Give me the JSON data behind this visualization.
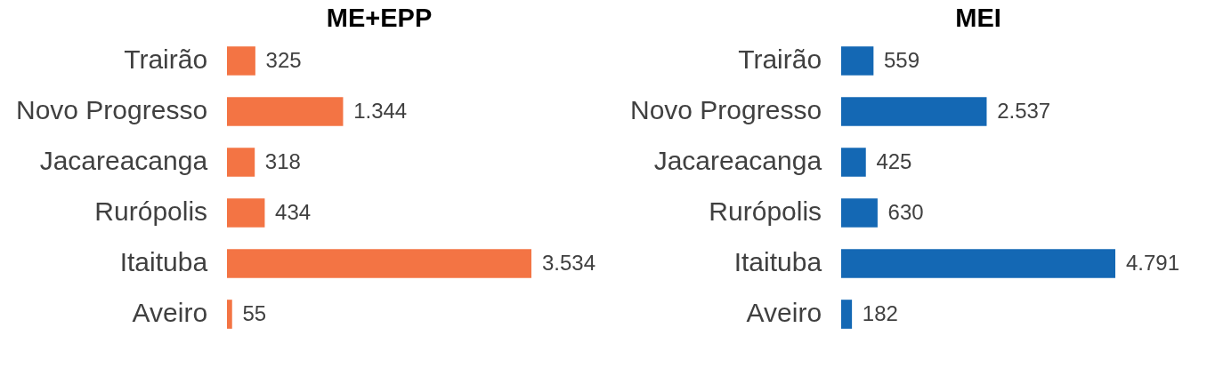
{
  "chart_data": [
    {
      "type": "bar",
      "orientation": "horizontal",
      "title": "ME+EPP",
      "categories": [
        "Trairão",
        "Novo Progresso",
        "Jacareacanga",
        "Rurópolis",
        "Itaituba",
        "Aveiro"
      ],
      "values": [
        325,
        1344,
        318,
        434,
        3534,
        55
      ],
      "color": "#f37444",
      "value_labels": [
        "325",
        "1.344",
        "318",
        "434",
        "3.534",
        "55"
      ],
      "grid": false,
      "legend": false,
      "tick_labels": "y"
    },
    {
      "type": "bar",
      "orientation": "horizontal",
      "title": "MEI",
      "categories": [
        "Trairão",
        "Novo Progresso",
        "Jacareacanga",
        "Rurópolis",
        "Itaituba",
        "Aveiro"
      ],
      "values": [
        559,
        2537,
        425,
        630,
        4791,
        182
      ],
      "color": "#1468b4",
      "value_labels": [
        "559",
        "2.537",
        "425",
        "630",
        "4.791",
        "182"
      ],
      "grid": false,
      "legend": false,
      "tick_labels": "y"
    }
  ]
}
